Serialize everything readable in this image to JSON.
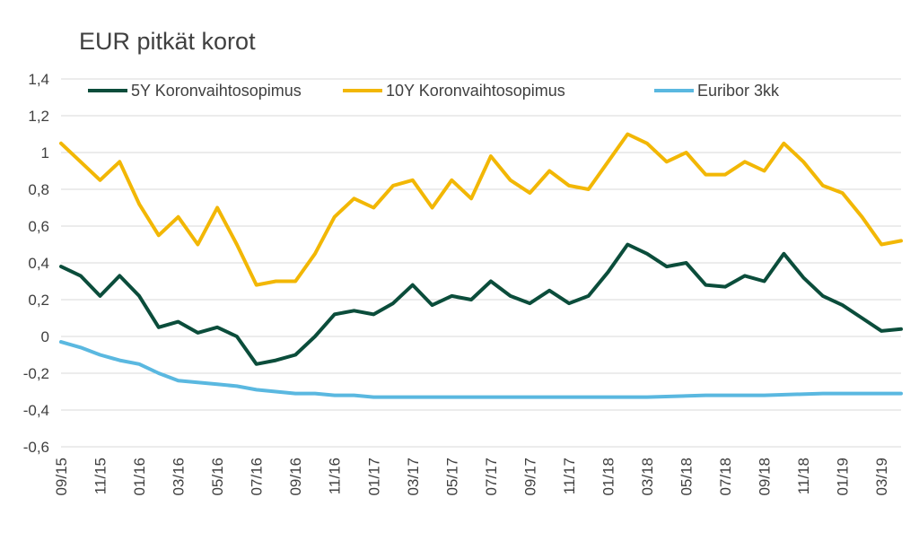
{
  "chart_data": {
    "type": "line",
    "title": "EUR pitkät korot",
    "xlabel": "",
    "ylabel": "",
    "ylim": [
      -0.6,
      1.4
    ],
    "yticks": [
      {
        "value": 1.4,
        "label": "1,4"
      },
      {
        "value": 1.2,
        "label": "1,2"
      },
      {
        "value": 1.0,
        "label": "1"
      },
      {
        "value": 0.8,
        "label": "0,8"
      },
      {
        "value": 0.6,
        "label": "0,6"
      },
      {
        "value": 0.4,
        "label": "0,4"
      },
      {
        "value": 0.2,
        "label": "0,2"
      },
      {
        "value": 0.0,
        "label": "0"
      },
      {
        "value": -0.2,
        "label": "-0,2"
      },
      {
        "value": -0.4,
        "label": "-0,4"
      },
      {
        "value": -0.6,
        "label": "-0,6"
      }
    ],
    "xrange": [
      "2015-09",
      "2019-04"
    ],
    "xticks": [
      "09/15",
      "11/15",
      "01/16",
      "03/16",
      "05/16",
      "07/16",
      "09/16",
      "11/16",
      "01/17",
      "03/17",
      "05/17",
      "07/17",
      "09/17",
      "11/17",
      "01/18",
      "03/18",
      "05/18",
      "07/18",
      "09/18",
      "11/18",
      "01/19",
      "03/19"
    ],
    "grid": true,
    "legend_position": "top",
    "series": [
      {
        "name": "5Y Koronvaihtosopimus",
        "color": "#0b4d3b",
        "points": [
          [
            "09/15",
            0.38
          ],
          [
            "10/15",
            0.33
          ],
          [
            "11/15",
            0.22
          ],
          [
            "12/15",
            0.33
          ],
          [
            "01/16",
            0.22
          ],
          [
            "02/16",
            0.05
          ],
          [
            "03/16",
            0.08
          ],
          [
            "04/16",
            0.02
          ],
          [
            "05/16",
            0.05
          ],
          [
            "06/16",
            0.0
          ],
          [
            "07/16",
            -0.15
          ],
          [
            "08/16",
            -0.13
          ],
          [
            "09/16",
            -0.1
          ],
          [
            "10/16",
            0.0
          ],
          [
            "11/16",
            0.12
          ],
          [
            "12/16",
            0.14
          ],
          [
            "01/17",
            0.12
          ],
          [
            "02/17",
            0.18
          ],
          [
            "03/17",
            0.28
          ],
          [
            "04/17",
            0.17
          ],
          [
            "05/17",
            0.22
          ],
          [
            "06/17",
            0.2
          ],
          [
            "07/17",
            0.3
          ],
          [
            "08/17",
            0.22
          ],
          [
            "09/17",
            0.18
          ],
          [
            "10/17",
            0.25
          ],
          [
            "11/17",
            0.18
          ],
          [
            "12/17",
            0.22
          ],
          [
            "01/18",
            0.35
          ],
          [
            "02/18",
            0.5
          ],
          [
            "03/18",
            0.45
          ],
          [
            "04/18",
            0.38
          ],
          [
            "05/18",
            0.4
          ],
          [
            "06/18",
            0.28
          ],
          [
            "07/18",
            0.27
          ],
          [
            "08/18",
            0.33
          ],
          [
            "09/18",
            0.3
          ],
          [
            "10/18",
            0.45
          ],
          [
            "11/18",
            0.32
          ],
          [
            "12/18",
            0.22
          ],
          [
            "01/19",
            0.17
          ],
          [
            "02/19",
            0.1
          ],
          [
            "03/19",
            0.03
          ],
          [
            "04/19",
            0.04
          ]
        ]
      },
      {
        "name": "10Y Koronvaihtosopimus",
        "color": "#f2b705",
        "points": [
          [
            "09/15",
            1.05
          ],
          [
            "10/15",
            0.95
          ],
          [
            "11/15",
            0.85
          ],
          [
            "12/15",
            0.95
          ],
          [
            "01/16",
            0.72
          ],
          [
            "02/16",
            0.55
          ],
          [
            "03/16",
            0.65
          ],
          [
            "04/16",
            0.5
          ],
          [
            "05/16",
            0.7
          ],
          [
            "06/16",
            0.5
          ],
          [
            "07/16",
            0.28
          ],
          [
            "08/16",
            0.3
          ],
          [
            "09/16",
            0.3
          ],
          [
            "10/16",
            0.45
          ],
          [
            "11/16",
            0.65
          ],
          [
            "12/16",
            0.75
          ],
          [
            "01/17",
            0.7
          ],
          [
            "02/17",
            0.82
          ],
          [
            "03/17",
            0.85
          ],
          [
            "04/17",
            0.7
          ],
          [
            "05/17",
            0.85
          ],
          [
            "06/17",
            0.75
          ],
          [
            "07/17",
            0.98
          ],
          [
            "08/17",
            0.85
          ],
          [
            "09/17",
            0.78
          ],
          [
            "10/17",
            0.9
          ],
          [
            "11/17",
            0.82
          ],
          [
            "12/17",
            0.8
          ],
          [
            "01/18",
            0.95
          ],
          [
            "02/18",
            1.1
          ],
          [
            "03/18",
            1.05
          ],
          [
            "04/18",
            0.95
          ],
          [
            "05/18",
            1.0
          ],
          [
            "06/18",
            0.88
          ],
          [
            "07/18",
            0.88
          ],
          [
            "08/18",
            0.95
          ],
          [
            "09/18",
            0.9
          ],
          [
            "10/18",
            1.05
          ],
          [
            "11/18",
            0.95
          ],
          [
            "12/18",
            0.82
          ],
          [
            "01/19",
            0.78
          ],
          [
            "02/19",
            0.65
          ],
          [
            "03/19",
            0.5
          ],
          [
            "04/19",
            0.52
          ]
        ]
      },
      {
        "name": "Euribor 3kk",
        "color": "#5ab8e0",
        "points": [
          [
            "09/15",
            -0.03
          ],
          [
            "10/15",
            -0.06
          ],
          [
            "11/15",
            -0.1
          ],
          [
            "12/15",
            -0.13
          ],
          [
            "01/16",
            -0.15
          ],
          [
            "02/16",
            -0.2
          ],
          [
            "03/16",
            -0.24
          ],
          [
            "04/16",
            -0.25
          ],
          [
            "05/16",
            -0.26
          ],
          [
            "06/16",
            -0.27
          ],
          [
            "07/16",
            -0.29
          ],
          [
            "08/16",
            -0.3
          ],
          [
            "09/16",
            -0.31
          ],
          [
            "10/16",
            -0.31
          ],
          [
            "11/16",
            -0.32
          ],
          [
            "12/16",
            -0.32
          ],
          [
            "01/17",
            -0.33
          ],
          [
            "03/17",
            -0.33
          ],
          [
            "06/17",
            -0.33
          ],
          [
            "09/17",
            -0.33
          ],
          [
            "12/17",
            -0.33
          ],
          [
            "03/18",
            -0.33
          ],
          [
            "06/18",
            -0.32
          ],
          [
            "09/18",
            -0.32
          ],
          [
            "12/18",
            -0.31
          ],
          [
            "02/19",
            -0.31
          ],
          [
            "04/19",
            -0.31
          ]
        ]
      }
    ]
  }
}
